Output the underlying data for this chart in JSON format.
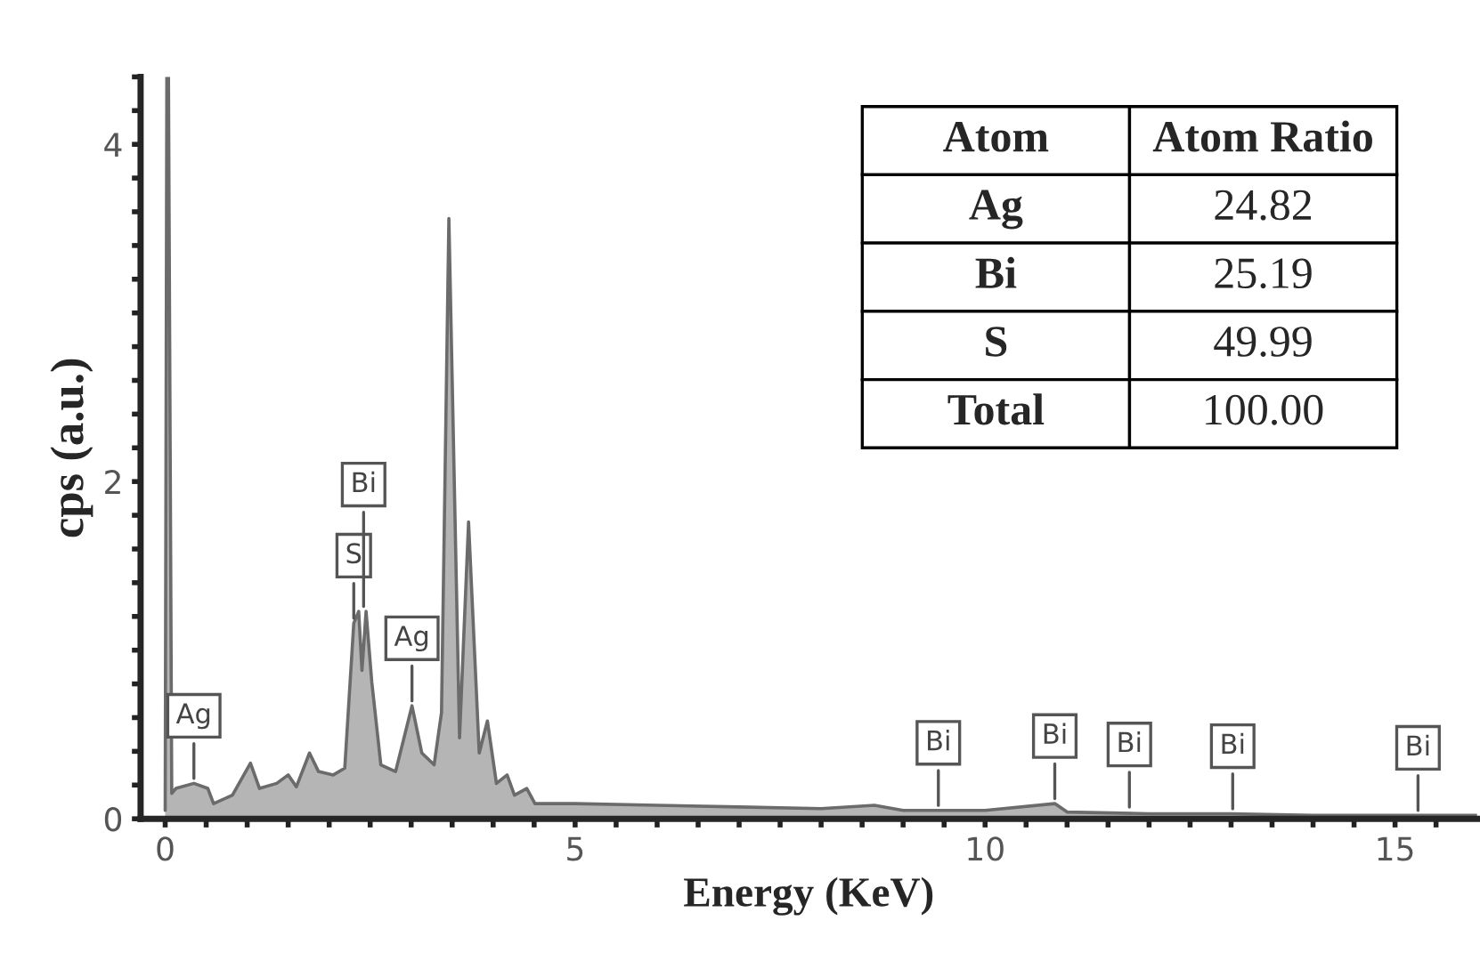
{
  "chart_data": {
    "type": "area",
    "xlabel": "Energy (KeV)",
    "ylabel": "cps (a.u.)",
    "x": [
      0.0,
      0.02,
      0.04,
      0.08,
      0.13,
      0.35,
      0.52,
      0.59,
      0.82,
      1.04,
      1.15,
      1.36,
      1.5,
      1.6,
      1.76,
      1.87,
      2.05,
      2.19,
      2.3,
      2.36,
      2.4,
      2.45,
      2.52,
      2.63,
      2.81,
      3.01,
      3.13,
      3.28,
      3.37,
      3.46,
      3.59,
      3.7,
      3.83,
      3.93,
      4.04,
      4.17,
      4.26,
      4.41,
      4.51,
      5.0,
      6.0,
      7.0,
      8.0,
      8.65,
      9.0,
      10.0,
      10.85,
      11.0,
      12.0,
      13.0,
      14.0,
      15.0,
      16.0
    ],
    "series": [
      {
        "color": "#6b6b6b",
        "values": [
          0.05,
          4.4,
          4.4,
          0.15,
          0.18,
          0.21,
          0.18,
          0.09,
          0.14,
          0.33,
          0.18,
          0.21,
          0.26,
          0.19,
          0.39,
          0.28,
          0.26,
          0.3,
          1.16,
          1.23,
          0.88,
          1.23,
          0.81,
          0.32,
          0.28,
          0.67,
          0.39,
          0.32,
          0.63,
          3.56,
          0.48,
          1.76,
          0.39,
          0.58,
          0.21,
          0.26,
          0.14,
          0.18,
          0.09,
          0.09,
          0.08,
          0.07,
          0.06,
          0.08,
          0.05,
          0.05,
          0.09,
          0.04,
          0.03,
          0.03,
          0.02,
          0.02,
          0.02
        ]
      }
    ],
    "xlim": [
      -0.3,
      16.0
    ],
    "ylim": [
      0,
      4.4
    ],
    "xticks": [
      0,
      {
        "value": 0.5,
        "label": null
      },
      {
        "value": 1,
        "label": null
      },
      {
        "value": 1.5,
        "label": null
      },
      {
        "value": 2,
        "label": null
      },
      {
        "value": 2.5,
        "label": null
      },
      {
        "value": 3,
        "label": null
      },
      {
        "value": 3.5,
        "label": null
      },
      {
        "value": 4,
        "label": null
      },
      {
        "value": 4.5,
        "label": null
      },
      5,
      {
        "value": 5.5,
        "label": null
      },
      {
        "value": 6,
        "label": null
      },
      {
        "value": 6.5,
        "label": null
      },
      {
        "value": 7,
        "label": null
      },
      {
        "value": 7.5,
        "label": null
      },
      {
        "value": 8,
        "label": null
      },
      {
        "value": 8.5,
        "label": null
      },
      {
        "value": 9,
        "label": null
      },
      {
        "value": 9.5,
        "label": null
      },
      10,
      {
        "value": 10.5,
        "label": null
      },
      {
        "value": 11,
        "label": null
      },
      {
        "value": 11.5,
        "label": null
      },
      {
        "value": 12,
        "label": null
      },
      {
        "value": 12.5,
        "label": null
      },
      {
        "value": 13,
        "label": null
      },
      {
        "value": 13.5,
        "label": null
      },
      {
        "value": 14,
        "label": null
      },
      {
        "value": 14.5,
        "label": null
      },
      15,
      {
        "value": 15.5,
        "label": null
      }
    ],
    "yticks": [
      0,
      {
        "value": 0.2,
        "label": null
      },
      {
        "value": 0.4,
        "label": null
      },
      {
        "value": 0.6,
        "label": null
      },
      {
        "value": 0.8,
        "label": null
      },
      {
        "value": 1.0,
        "label": null
      },
      {
        "value": 1.2,
        "label": null
      },
      {
        "value": 1.4,
        "label": null
      },
      {
        "value": 1.6,
        "label": null
      },
      {
        "value": 1.8,
        "label": null
      },
      2,
      {
        "value": 2.2,
        "label": null
      },
      {
        "value": 2.4,
        "label": null
      },
      {
        "value": 2.6,
        "label": null
      },
      {
        "value": 2.8,
        "label": null
      },
      {
        "value": 3.0,
        "label": null
      },
      {
        "value": 3.2,
        "label": null
      },
      {
        "value": 3.4,
        "label": null
      },
      {
        "value": 3.6,
        "label": null
      },
      {
        "value": 3.8,
        "label": null
      },
      4,
      {
        "value": 4.2,
        "label": null
      },
      {
        "value": 4.4,
        "label": null
      }
    ],
    "grid": false,
    "annotations": [
      {
        "text": "Ag",
        "x": 0.35,
        "y": 0.21
      },
      {
        "text": "S",
        "x": 2.3,
        "y": 1.16
      },
      {
        "text": "Bi",
        "x": 2.42,
        "y": 1.23
      },
      {
        "text": "Ag",
        "x": 3.01,
        "y": 0.67
      },
      {
        "text": "Bi",
        "x": 9.43,
        "y": 0.05
      },
      {
        "text": "Bi",
        "x": 10.85,
        "y": 0.09
      },
      {
        "text": "Bi",
        "x": 11.76,
        "y": 0.04
      },
      {
        "text": "Bi",
        "x": 13.02,
        "y": 0.03
      },
      {
        "text": "Bi",
        "x": 15.28,
        "y": 0.02
      },
      "Atom",
      "Atom Ratio",
      "Ag",
      "24.82",
      "Bi",
      "25.19",
      "S",
      "49.99",
      "Total",
      "100.00"
    ]
  }
}
